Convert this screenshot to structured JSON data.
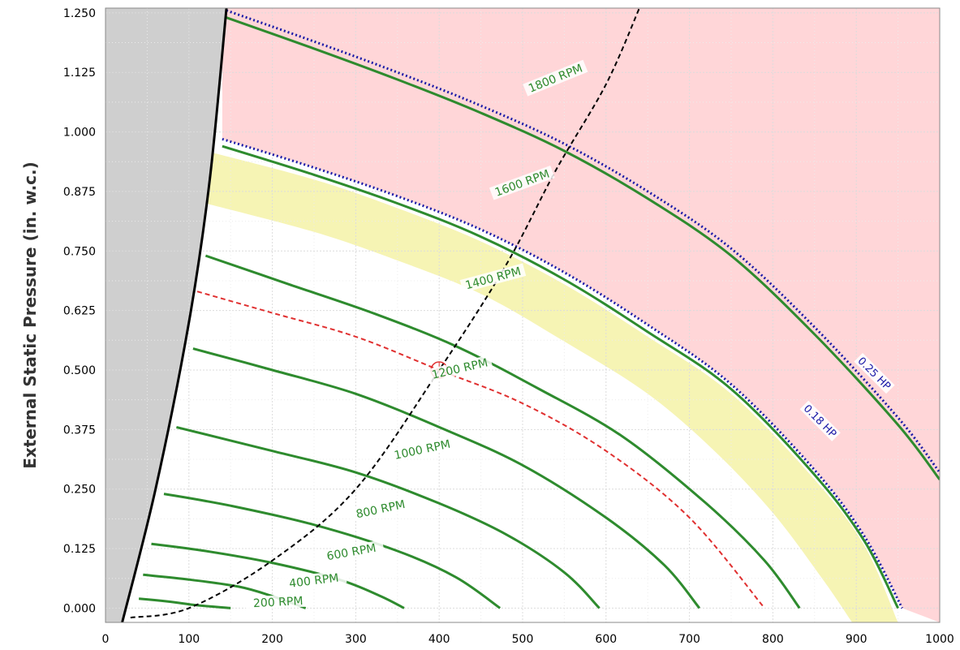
{
  "chart_data": {
    "type": "line",
    "title": "",
    "xlabel": "",
    "ylabel": "External Static Pressure (in. w.c.)",
    "xlim": [
      0,
      1000
    ],
    "ylim": [
      -0.03,
      1.26
    ],
    "grid": true,
    "x_ticks": [
      0,
      100,
      200,
      300,
      400,
      500,
      600,
      700,
      800,
      900,
      1000
    ],
    "y_ticks": [
      0,
      0.125,
      0.25,
      0.375,
      0.5,
      0.625,
      0.75,
      0.875,
      1.0,
      1.125,
      1.25
    ],
    "x_tick_labels": [
      "0",
      "100",
      "200",
      "300",
      "400",
      "500",
      "600",
      "700",
      "800",
      "900",
      "1000"
    ],
    "y_tick_labels": [
      "0.000",
      "0.125",
      "0.250",
      "0.375",
      "0.500",
      "0.625",
      "0.750",
      "0.875",
      "1.000",
      "1.125",
      "1.250"
    ],
    "colors": {
      "fan_curve": "#2e8b2e",
      "hp_limit": "#1a1aa8",
      "system_curve": "#000000",
      "selected_curve": "#e03030",
      "overload_region": "#ffd6d8",
      "caution_region": "#f6f4b4",
      "stall_region": "#cfcfcf"
    },
    "fan_curves": [
      {
        "name": "200 RPM",
        "x": [
          40,
          75,
          110,
          150
        ],
        "y": [
          0.02,
          0.014,
          0.006,
          0.0
        ]
      },
      {
        "name": "400 RPM",
        "x": [
          45,
          100,
          160,
          200,
          240
        ],
        "y": [
          0.07,
          0.06,
          0.045,
          0.025,
          0.0
        ]
      },
      {
        "name": "600 RPM",
        "x": [
          55,
          120,
          200,
          280,
          330,
          358
        ],
        "y": [
          0.135,
          0.12,
          0.095,
          0.06,
          0.025,
          0.0
        ]
      },
      {
        "name": "800 RPM",
        "x": [
          70,
          150,
          250,
          350,
          420,
          473
        ],
        "y": [
          0.24,
          0.215,
          0.175,
          0.12,
          0.065,
          0.0
        ]
      },
      {
        "name": "1000 RPM",
        "x": [
          85,
          200,
          300,
          400,
          480,
          550,
          592
        ],
        "y": [
          0.38,
          0.33,
          0.285,
          0.22,
          0.155,
          0.075,
          0.0
        ]
      },
      {
        "name": "1200 RPM",
        "x": [
          105,
          200,
          300,
          400,
          500,
          600,
          670,
          712
        ],
        "y": [
          0.545,
          0.5,
          0.45,
          0.38,
          0.3,
          0.19,
          0.09,
          0.0
        ]
      },
      {
        "name": "1400 RPM",
        "x": [
          120,
          220,
          320,
          420,
          520,
          620,
          720,
          790,
          832
        ],
        "y": [
          0.74,
          0.68,
          0.62,
          0.55,
          0.46,
          0.36,
          0.22,
          0.1,
          0.0
        ]
      },
      {
        "name": "1600 RPM",
        "x": [
          140,
          250,
          350,
          450,
          550,
          650,
          750,
          850,
          910,
          950
        ],
        "y": [
          0.97,
          0.91,
          0.85,
          0.78,
          0.69,
          0.58,
          0.46,
          0.28,
          0.14,
          0.0
        ]
      },
      {
        "name": "1800 RPM",
        "x": [
          145,
          250,
          350,
          450,
          550,
          650,
          750,
          850,
          950,
          1000
        ],
        "y": [
          1.24,
          1.175,
          1.11,
          1.04,
          0.96,
          0.86,
          0.74,
          0.575,
          0.385,
          0.27
        ]
      }
    ],
    "hp_limits": [
      {
        "name": "0.18 HP",
        "x": [
          140,
          250,
          350,
          450,
          550,
          650,
          750,
          850,
          910,
          955
        ],
        "y": [
          0.985,
          0.925,
          0.865,
          0.795,
          0.705,
          0.595,
          0.47,
          0.29,
          0.15,
          0.0
        ]
      },
      {
        "name": "0.25 HP",
        "x": [
          145,
          250,
          350,
          450,
          550,
          650,
          750,
          850,
          950,
          1000
        ],
        "y": [
          1.255,
          1.19,
          1.125,
          1.055,
          0.975,
          0.875,
          0.755,
          0.59,
          0.4,
          0.285
        ]
      }
    ],
    "selected_curve": {
      "x": [
        110,
        200,
        300,
        400,
        500,
        600,
        700,
        790
      ],
      "y": [
        0.665,
        0.62,
        0.57,
        0.5,
        0.43,
        0.33,
        0.19,
        0.0
      ]
    },
    "system_curve": {
      "x": [
        30,
        100,
        200,
        300,
        400,
        480,
        540,
        600,
        640
      ],
      "y": [
        -0.02,
        0.0,
        0.1,
        0.25,
        0.5,
        0.72,
        0.92,
        1.1,
        1.26
      ]
    },
    "operating_point": {
      "x": 400,
      "y": 0.5
    },
    "caution_band": {
      "upper_x": [
        120,
        250,
        350,
        450,
        550,
        650,
        750,
        850,
        910,
        950
      ],
      "upper_y": [
        0.96,
        0.9,
        0.84,
        0.77,
        0.68,
        0.57,
        0.45,
        0.27,
        0.13,
        -0.03
      ],
      "lower_x": [
        895,
        860,
        800,
        730,
        650,
        550,
        450,
        350,
        250,
        120
      ],
      "lower_y": [
        -0.03,
        0.06,
        0.2,
        0.33,
        0.45,
        0.56,
        0.66,
        0.73,
        0.79,
        0.85
      ]
    },
    "stall_boundary": {
      "x": [
        20,
        60,
        100,
        125,
        145
      ],
      "y": [
        -0.03,
        0.25,
        0.6,
        0.9,
        1.26
      ]
    }
  }
}
